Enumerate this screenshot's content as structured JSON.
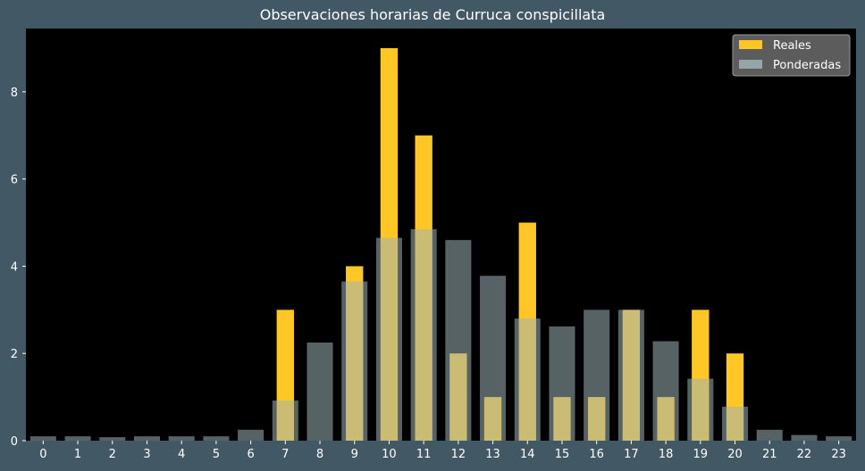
{
  "chart_data": {
    "type": "bar",
    "title": "Observaciones horarias de Curruca conspicillata",
    "xlabel": "",
    "ylabel": "",
    "categories": [
      "0",
      "1",
      "2",
      "3",
      "4",
      "5",
      "6",
      "7",
      "8",
      "9",
      "10",
      "11",
      "12",
      "13",
      "14",
      "15",
      "16",
      "17",
      "18",
      "19",
      "20",
      "21",
      "22",
      "23"
    ],
    "series": [
      {
        "name": "Reales",
        "color": "#ffc726",
        "values": [
          0,
          0,
          0,
          0,
          0,
          0,
          0,
          3,
          0,
          4,
          9,
          7,
          2,
          1,
          5,
          1,
          1,
          3,
          1,
          3,
          2,
          0,
          0,
          0
        ]
      },
      {
        "name": "Ponderadas",
        "color": "#9fb3b7",
        "opacity": 0.55,
        "values": [
          0.1,
          0.1,
          0.08,
          0.1,
          0.1,
          0.1,
          0.25,
          0.92,
          2.25,
          3.65,
          4.65,
          4.85,
          4.6,
          3.78,
          2.8,
          2.62,
          3.0,
          3.0,
          2.28,
          1.42,
          0.78,
          0.25,
          0.13,
          0.1
        ]
      }
    ],
    "yticks": [
      "0",
      "2",
      "4",
      "6",
      "8"
    ],
    "ylim": [
      0,
      9.45
    ],
    "grid": false,
    "legend_position": "top-right",
    "background": "#000000",
    "figure_background": "#425865"
  }
}
